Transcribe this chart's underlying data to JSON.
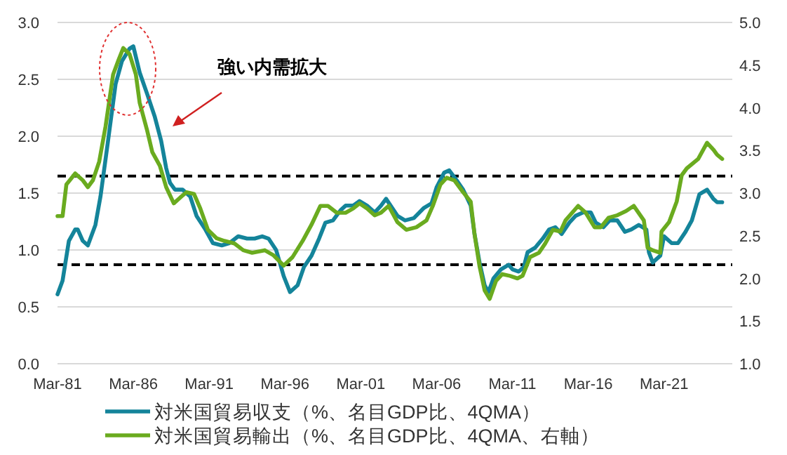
{
  "chart_data": {
    "type": "line",
    "xlim": [
      "1981-03",
      "2025-09"
    ],
    "xticks": [
      {
        "value": "1981-03",
        "label": "Mar-81"
      },
      {
        "value": "1986-03",
        "label": "Mar-86"
      },
      {
        "value": "1991-03",
        "label": "Mar-91"
      },
      {
        "value": "1996-03",
        "label": "Mar-96"
      },
      {
        "value": "2001-03",
        "label": "Mar-01"
      },
      {
        "value": "2006-03",
        "label": "Mar-06"
      },
      {
        "value": "2011-03",
        "label": "Mar-11"
      },
      {
        "value": "2016-03",
        "label": "Mar-16"
      },
      {
        "value": "2021-03",
        "label": "Mar-21"
      }
    ],
    "ylim": [
      0,
      3
    ],
    "yticks": [
      {
        "value": 0,
        "label": "0.0"
      },
      {
        "value": 0.5,
        "label": "0.5"
      },
      {
        "value": 1,
        "label": "1.0"
      },
      {
        "value": 1.5,
        "label": "1.5"
      },
      {
        "value": 2,
        "label": "2.0"
      },
      {
        "value": 2.5,
        "label": "2.5"
      },
      {
        "value": 3,
        "label": "3.0"
      }
    ],
    "y2lim": [
      1,
      5
    ],
    "y2ticks": [
      {
        "value": 1,
        "label": "1.0"
      },
      {
        "value": 1.5,
        "label": "1.5"
      },
      {
        "value": 2,
        "label": "2.0"
      },
      {
        "value": 2.5,
        "label": "2.5"
      },
      {
        "value": 3,
        "label": "3.0"
      },
      {
        "value": 3.5,
        "label": "3.5"
      },
      {
        "value": 4,
        "label": "4.0"
      },
      {
        "value": 4.5,
        "label": "4.5"
      },
      {
        "value": 5,
        "label": "5.0"
      }
    ],
    "grid": "y",
    "legend": "bottom",
    "marker": "none",
    "line_style": "solid",
    "series": [
      {
        "name": "対米国貿易収支（%、名目GDP比、4QMA）",
        "color": "#14849a",
        "x": [
          "1981-03",
          "1981-07",
          "1981-12",
          "1982-05",
          "1982-07",
          "1982-11",
          "1983-03",
          "1983-09",
          "1984-01",
          "1984-07",
          "1985-01",
          "1985-06",
          "1985-12",
          "1986-03",
          "1986-08",
          "1987-02",
          "1987-08",
          "1988-01",
          "1988-05",
          "1988-08",
          "1988-12",
          "1989-06",
          "1989-12",
          "1990-05",
          "1990-12",
          "1991-06",
          "1992-01",
          "1992-07",
          "1993-02",
          "1993-09",
          "1994-03",
          "1994-09",
          "1995-02",
          "1995-08",
          "1996-02",
          "1996-07",
          "1997-01",
          "1997-06",
          "1997-12",
          "1998-06",
          "1998-11",
          "1999-05",
          "1999-11",
          "2000-03",
          "2000-09",
          "2001-02",
          "2001-08",
          "2002-02",
          "2002-07",
          "2002-11",
          "2003-08",
          "2004-02",
          "2004-09",
          "2005-05",
          "2005-11",
          "2006-03",
          "2006-09",
          "2007-01",
          "2007-07",
          "2007-12",
          "2008-06",
          "2008-09",
          "2009-01",
          "2009-05",
          "2009-08",
          "2009-12",
          "2010-06",
          "2010-12",
          "2011-03",
          "2011-08",
          "2011-12",
          "2012-03",
          "2012-09",
          "2013-03",
          "2013-08",
          "2014-01",
          "2014-06",
          "2014-12",
          "2015-05",
          "2015-11",
          "2016-05",
          "2016-09",
          "2017-03",
          "2017-08",
          "2018-02",
          "2018-08",
          "2019-01",
          "2019-07",
          "2020-01",
          "2020-03",
          "2020-06",
          "2020-12",
          "2021-03",
          "2021-09",
          "2022-02",
          "2022-08",
          "2023-01",
          "2023-07",
          "2024-01",
          "2024-06",
          "2024-09",
          "2025-01"
        ],
        "values": [
          0.61,
          0.73,
          1.08,
          1.18,
          1.18,
          1.08,
          1.04,
          1.22,
          1.47,
          1.96,
          2.46,
          2.66,
          2.77,
          2.79,
          2.56,
          2.37,
          2.17,
          1.96,
          1.72,
          1.59,
          1.53,
          1.53,
          1.47,
          1.3,
          1.18,
          1.06,
          1.04,
          1.06,
          1.12,
          1.1,
          1.1,
          1.12,
          1.1,
          1.0,
          0.77,
          0.63,
          0.69,
          0.85,
          0.95,
          1.1,
          1.24,
          1.26,
          1.35,
          1.39,
          1.39,
          1.43,
          1.39,
          1.33,
          1.39,
          1.45,
          1.3,
          1.26,
          1.28,
          1.37,
          1.41,
          1.55,
          1.68,
          1.7,
          1.61,
          1.53,
          1.39,
          1.14,
          0.89,
          0.69,
          0.63,
          0.75,
          0.83,
          0.87,
          0.83,
          0.81,
          0.85,
          0.98,
          1.02,
          1.1,
          1.18,
          1.2,
          1.14,
          1.24,
          1.3,
          1.33,
          1.33,
          1.24,
          1.2,
          1.26,
          1.26,
          1.16,
          1.18,
          1.22,
          1.18,
          0.98,
          0.89,
          0.95,
          1.12,
          1.06,
          1.06,
          1.16,
          1.26,
          1.49,
          1.53,
          1.45,
          1.42,
          1.42
        ]
      },
      {
        "name": "対米国貿易輸出（%、名目GDP比、4QMA、右軸）",
        "color": "#6aab1f",
        "axis": "y2",
        "x": [
          "1981-03",
          "1981-07",
          "1981-10",
          "1982-05",
          "1982-11",
          "1983-03",
          "1983-07",
          "1983-12",
          "1984-05",
          "1984-11",
          "1985-03",
          "1985-07",
          "1985-12",
          "1986-05",
          "1986-08",
          "1987-02",
          "1987-06",
          "1987-12",
          "1988-05",
          "1988-11",
          "1989-05",
          "1989-09",
          "1990-03",
          "1990-08",
          "1991-02",
          "1991-09",
          "1992-03",
          "1992-11",
          "1993-06",
          "1994-01",
          "1994-11",
          "1995-06",
          "1996-02",
          "1996-09",
          "1997-05",
          "1997-12",
          "1998-07",
          "1999-01",
          "1999-08",
          "2000-03",
          "2000-09",
          "2001-02",
          "2001-08",
          "2002-02",
          "2002-07",
          "2003-01",
          "2003-08",
          "2004-03",
          "2004-11",
          "2005-07",
          "2005-12",
          "2006-06",
          "2006-11",
          "2007-05",
          "2007-12",
          "2008-06",
          "2008-09",
          "2009-01",
          "2009-05",
          "2009-09",
          "2010-02",
          "2010-07",
          "2011-01",
          "2011-07",
          "2011-11",
          "2012-05",
          "2012-12",
          "2013-05",
          "2013-11",
          "2014-05",
          "2014-09",
          "2015-07",
          "2016-01",
          "2016-08",
          "2017-01",
          "2017-07",
          "2018-02",
          "2018-09",
          "2019-03",
          "2019-11",
          "2020-02",
          "2020-06",
          "2020-12",
          "2021-01",
          "2021-07",
          "2022-01",
          "2022-05",
          "2022-09",
          "2023-06",
          "2024-01",
          "2024-06",
          "2024-09",
          "2025-01"
        ],
        "values": [
          2.73,
          2.73,
          3.1,
          3.23,
          3.15,
          3.07,
          3.15,
          3.37,
          3.78,
          4.39,
          4.55,
          4.7,
          4.63,
          4.39,
          4.06,
          3.73,
          3.48,
          3.32,
          3.07,
          2.88,
          2.96,
          3.01,
          2.99,
          2.82,
          2.57,
          2.47,
          2.44,
          2.41,
          2.33,
          2.3,
          2.33,
          2.27,
          2.15,
          2.25,
          2.44,
          2.63,
          2.85,
          2.85,
          2.77,
          2.77,
          2.82,
          2.88,
          2.82,
          2.74,
          2.77,
          2.85,
          2.66,
          2.57,
          2.6,
          2.68,
          2.85,
          3.1,
          3.18,
          3.15,
          3.01,
          2.9,
          2.52,
          2.14,
          1.86,
          1.76,
          1.97,
          2.05,
          2.03,
          2.0,
          2.03,
          2.25,
          2.3,
          2.41,
          2.57,
          2.55,
          2.68,
          2.85,
          2.77,
          2.6,
          2.6,
          2.71,
          2.74,
          2.79,
          2.85,
          2.68,
          2.36,
          2.33,
          2.3,
          2.55,
          2.66,
          2.9,
          3.21,
          3.29,
          3.4,
          3.59,
          3.51,
          3.45,
          3.4
        ]
      }
    ],
    "ref_lines": [
      {
        "axis": "y",
        "value": 1.65,
        "color": "#000000",
        "line_style": "dashed"
      },
      {
        "axis": "y",
        "value": 0.87,
        "color": "#000000",
        "line_style": "dashed"
      }
    ],
    "annotations": [
      "強い内需拡大"
    ]
  }
}
